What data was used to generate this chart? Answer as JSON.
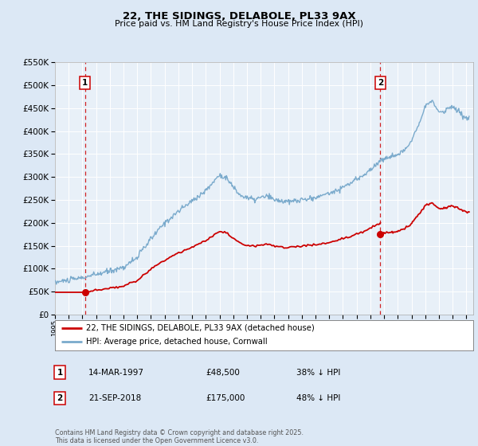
{
  "title": "22, THE SIDINGS, DELABOLE, PL33 9AX",
  "subtitle": "Price paid vs. HM Land Registry's House Price Index (HPI)",
  "sale1_date": 1997.2,
  "sale1_price": 48500,
  "sale1_label": "1",
  "sale1_text": "14-MAR-1997",
  "sale1_amount": "£48,500",
  "sale1_hpi": "38% ↓ HPI",
  "sale2_date": 2018.73,
  "sale2_price": 175000,
  "sale2_label": "2",
  "sale2_text": "21-SEP-2018",
  "sale2_amount": "£175,000",
  "sale2_hpi": "48% ↓ HPI",
  "hpi_label": "HPI: Average price, detached house, Cornwall",
  "property_label": "22, THE SIDINGS, DELABOLE, PL33 9AX (detached house)",
  "footer": "Contains HM Land Registry data © Crown copyright and database right 2025.\nThis data is licensed under the Open Government Licence v3.0.",
  "xmin": 1995,
  "xmax": 2025.5,
  "ymin": 0,
  "ymax": 550000,
  "bg_color": "#dce8f5",
  "plot_bg": "#e8f0f8",
  "red_color": "#cc0000",
  "blue_color": "#7aaacc"
}
